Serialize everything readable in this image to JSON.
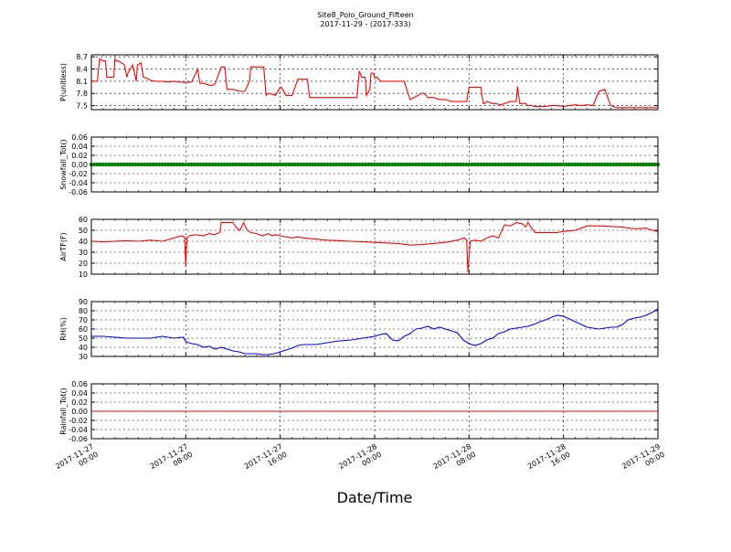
{
  "title": "Site8_Polo_Ground_Fifteen",
  "subtitle": "2017-11-29 - (2017-333)",
  "xlabel": "Date/Time",
  "x_ticks": [
    "2017-11-27\n00:00",
    "2017-11-27\n08:00",
    "2017-11-27\n16:00",
    "2017-11-28\n00:00",
    "2017-11-28\n08:00",
    "2017-11-28\n16:00",
    "2017-11-29\n00:00"
  ],
  "colors": {
    "red": "#ff0000",
    "green": "#008000",
    "blue": "#0000ff"
  },
  "chart_data": [
    {
      "type": "line",
      "ylabel": "P(unitless)",
      "ylim": [
        7.4,
        8.75
      ],
      "yticks": [
        "8.7",
        "8.4",
        "8.1",
        "7.8",
        "7.5"
      ],
      "color": "#ff0000",
      "x_hours": [
        0,
        0.5,
        0.7,
        1.0,
        1.2,
        1.3,
        1.5,
        1.9,
        2.0,
        2.1,
        2.3,
        2.8,
        3.0,
        3.1,
        3.5,
        3.8,
        3.9,
        4.2,
        4.4,
        4.9,
        5.0,
        5.5,
        6.0,
        6.5,
        7.0,
        7.5,
        8.0,
        8.5,
        9.0,
        9.2,
        9.5,
        10.0,
        10.3,
        10.5,
        11.0,
        11.3,
        11.5,
        12.0,
        12.6,
        12.8,
        13.0,
        13.4,
        13.5,
        14.0,
        14.6,
        14.8,
        15.0,
        15.1,
        15.6,
        16.0,
        16.1,
        16.5,
        16.8,
        17.0,
        17.5,
        17.7,
        18.3,
        18.5,
        19.0,
        19.5,
        20.0,
        20.4,
        20.5,
        21.0,
        22.5,
        22.7,
        22.9,
        23.2,
        23.3,
        23.6,
        23.7,
        23.9,
        24.0,
        24.2,
        24.5,
        25.0,
        25.5,
        26.0,
        26.5,
        27.0,
        27.7,
        27.9,
        28.2,
        28.5,
        28.9,
        29.0,
        29.5,
        30.0,
        30.5,
        31.0,
        31.5,
        31.8,
        32.0,
        32.5,
        33.0,
        33.2,
        33.3,
        33.5,
        34.0,
        34.2,
        34.7,
        35.0,
        35.5,
        35.8,
        36.0,
        36.1,
        36.3,
        36.8,
        37.0,
        37.3,
        37.5,
        38.0,
        38.5,
        39.0,
        39.5,
        40.0,
        40.5,
        41.0,
        41.5,
        42.0,
        42.5,
        43.0,
        43.5,
        44.0,
        44.5,
        45.0,
        45.5,
        46.0,
        46.5,
        47.0,
        47.5,
        48.0
      ],
      "values": [
        8.1,
        8.1,
        8.65,
        8.6,
        8.6,
        8.2,
        8.2,
        8.2,
        8.65,
        8.6,
        8.6,
        8.5,
        8.2,
        8.3,
        8.5,
        8.1,
        8.5,
        8.55,
        8.2,
        8.15,
        8.12,
        8.1,
        8.1,
        8.08,
        8.1,
        8.08,
        8.07,
        8.08,
        8.4,
        8.05,
        8.05,
        8.0,
        8.0,
        8.05,
        8.45,
        8.45,
        7.9,
        7.9,
        7.85,
        7.85,
        7.85,
        8.1,
        8.45,
        8.45,
        8.45,
        7.75,
        7.8,
        7.8,
        7.75,
        7.95,
        7.95,
        7.75,
        7.75,
        7.75,
        8.15,
        8.15,
        8.15,
        7.7,
        7.7,
        7.7,
        7.7,
        7.7,
        7.7,
        7.7,
        7.7,
        8.35,
        8.2,
        8.2,
        7.75,
        7.9,
        8.3,
        8.3,
        8.2,
        8.2,
        8.1,
        8.1,
        8.1,
        8.1,
        8.1,
        7.65,
        7.75,
        7.8,
        7.8,
        7.7,
        7.7,
        7.7,
        7.65,
        7.65,
        7.6,
        7.6,
        7.6,
        7.6,
        7.95,
        7.95,
        7.95,
        7.55,
        7.55,
        7.6,
        7.55,
        7.55,
        7.52,
        7.55,
        7.6,
        7.6,
        7.6,
        7.97,
        7.55,
        7.55,
        7.5,
        7.5,
        7.48,
        7.48,
        7.48,
        7.5,
        7.5,
        7.48,
        7.5,
        7.52,
        7.5,
        7.52,
        7.5,
        7.85,
        7.9,
        7.5,
        7.45,
        7.45,
        7.45,
        7.45,
        7.45,
        7.45,
        7.45,
        7.45
      ]
    },
    {
      "type": "scatter",
      "ylabel": "Snowfall_Tot()",
      "ylim": [
        -0.06,
        0.06
      ],
      "yticks": [
        "0.06",
        "0.04",
        "0.02",
        "0.00",
        "-0.02",
        "-0.04",
        "-0.06"
      ],
      "color": "#008000",
      "x_range_hours": [
        0,
        48
      ],
      "constant_value": 0.0
    },
    {
      "type": "line",
      "ylabel": "AirTF(F)",
      "ylim": [
        10,
        60
      ],
      "yticks": [
        "60",
        "50",
        "40",
        "30",
        "20",
        "10"
      ],
      "color": "#ff0000",
      "x_hours": [
        0,
        1,
        2,
        3,
        4,
        5,
        6,
        7,
        7.6,
        7.9,
        8.0,
        8.1,
        8.3,
        8.8,
        9.5,
        10,
        10.4,
        10.9,
        11.0,
        12.0,
        12.3,
        12.6,
        12.9,
        13.2,
        13.5,
        14.0,
        14.5,
        15.0,
        15.3,
        15.6,
        16.0,
        16.5,
        17.0,
        17.5,
        18.0,
        19.0,
        20.0,
        21.0,
        22.0,
        23.0,
        24.0,
        25.0,
        26.0,
        27.0,
        28.0,
        29.0,
        30.0,
        31.0,
        31.6,
        31.8,
        31.9,
        32.1,
        32.5,
        33.0,
        33.5,
        34.0,
        34.5,
        35.0,
        35.5,
        36.0,
        36.5,
        36.8,
        37.0,
        37.3,
        37.6,
        38.0,
        38.5,
        39.0,
        39.5,
        40.0,
        40.5,
        41.0,
        42.0,
        43.0,
        44.0,
        45.0,
        45.5,
        46.0,
        46.5,
        47.0,
        47.5,
        48.0
      ],
      "values": [
        40,
        39.5,
        40,
        40.5,
        40,
        41,
        40,
        43,
        45,
        44,
        17,
        43,
        45,
        46,
        45,
        47,
        46,
        48,
        57,
        57,
        52,
        50,
        57,
        50,
        48,
        47,
        45,
        47,
        45,
        46,
        45,
        44,
        43,
        44,
        43,
        42,
        41,
        40.5,
        40,
        39.5,
        39,
        38.5,
        38,
        36.5,
        37,
        38,
        39,
        41,
        43,
        41,
        12,
        40,
        41,
        40,
        43,
        45,
        43,
        55,
        54,
        57,
        56,
        53,
        57,
        52,
        48,
        48,
        48,
        48,
        48,
        49,
        49.5,
        50,
        54,
        54,
        53.5,
        53,
        52,
        51.5,
        51.5,
        52,
        50,
        49
      ]
    },
    {
      "type": "line",
      "ylabel": "RH(%)",
      "ylim": [
        30,
        90
      ],
      "yticks": [
        "90",
        "80",
        "70",
        "60",
        "50",
        "40",
        "30"
      ],
      "color": "#0000ff",
      "x_hours": [
        0,
        1,
        2,
        3,
        4,
        5,
        6,
        7,
        7.8,
        8.0,
        8.5,
        9.0,
        9.5,
        10.0,
        10.5,
        11.0,
        11.5,
        12.0,
        12.5,
        13.0,
        13.5,
        14.0,
        14.5,
        15.0,
        15.5,
        16.0,
        16.5,
        17.0,
        17.5,
        18.0,
        19.0,
        20.0,
        21.0,
        22.0,
        23.0,
        24.0,
        24.5,
        25.0,
        25.5,
        26.0,
        26.5,
        27.0,
        27.5,
        28.0,
        28.5,
        29.0,
        29.5,
        30.0,
        30.5,
        31.0,
        31.5,
        32.0,
        32.5,
        33.0,
        33.5,
        34.0,
        34.5,
        35.0,
        35.5,
        36.0,
        36.5,
        37.0,
        37.5,
        38.0,
        38.5,
        39.0,
        39.5,
        40.0,
        40.5,
        41.0,
        41.5,
        42.0,
        42.5,
        43.0,
        43.5,
        44.0,
        44.5,
        45.0,
        45.5,
        46.0,
        46.5,
        47.0,
        47.5,
        48.0
      ],
      "values": [
        52,
        52,
        51,
        50,
        50,
        50,
        52,
        50,
        51,
        46,
        44,
        43,
        40,
        41,
        38,
        40,
        38,
        36,
        35,
        33,
        33,
        33,
        32,
        32,
        33,
        35,
        37,
        39,
        42,
        43,
        43,
        45,
        47,
        48,
        50,
        52,
        54,
        55,
        48,
        47,
        52,
        55,
        60,
        61,
        63,
        60,
        62,
        60,
        58,
        56,
        48,
        44,
        42,
        44,
        48,
        50,
        55,
        57,
        60,
        61,
        62,
        63,
        65,
        68,
        70,
        73,
        75,
        74,
        71,
        68,
        65,
        62,
        61,
        60,
        61,
        62,
        62,
        65,
        70,
        72,
        73,
        75,
        78,
        82
      ]
    },
    {
      "type": "line",
      "ylabel": "Rainfall_Tot()",
      "ylim": [
        -0.06,
        0.06
      ],
      "yticks": [
        "0.06",
        "0.04",
        "0.02",
        "0.00",
        "-0.02",
        "-0.04",
        "-0.06"
      ],
      "color": "#ff0000",
      "x_range_hours": [
        0,
        48
      ],
      "constant_value": 0.0
    }
  ]
}
